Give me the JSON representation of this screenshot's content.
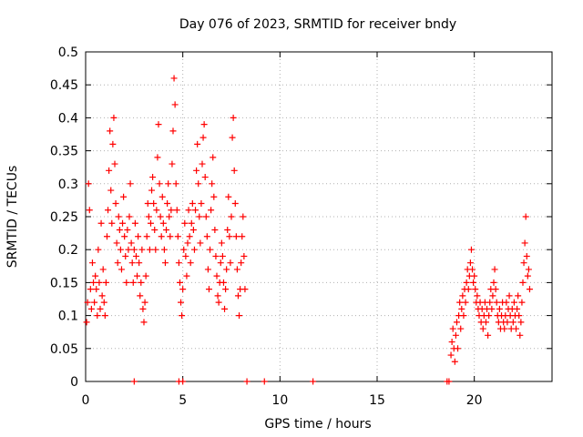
{
  "chart_data": {
    "type": "scatter",
    "title": "Day 076 of 2023, SRMTID for receiver bndy",
    "xlabel": "GPS time / hours",
    "ylabel": "SRMTID / TECUs",
    "xlim": [
      0,
      24
    ],
    "ylim": [
      0,
      0.5
    ],
    "x_ticks": [
      0,
      5,
      10,
      15,
      20
    ],
    "x_tick_labels": [
      "0",
      "5",
      "10",
      "15",
      "20"
    ],
    "y_ticks": [
      0,
      0.05,
      0.1,
      0.15,
      0.2,
      0.25,
      0.3,
      0.35,
      0.4,
      0.45,
      0.5
    ],
    "y_tick_labels": [
      "0",
      "0.05",
      "0.1",
      "0.15",
      "0.2",
      "0.25",
      "0.3",
      "0.35",
      "0.4",
      "0.45",
      "0.5"
    ],
    "grid": true,
    "marker": "+",
    "series": [
      {
        "name": "SRMTID",
        "color": "#ff0000",
        "points": [
          [
            0.05,
            0.09
          ],
          [
            0.1,
            0.12
          ],
          [
            0.15,
            0.3
          ],
          [
            0.2,
            0.26
          ],
          [
            0.25,
            0.14
          ],
          [
            0.3,
            0.11
          ],
          [
            0.35,
            0.18
          ],
          [
            0.4,
            0.15
          ],
          [
            0.45,
            0.12
          ],
          [
            0.5,
            0.16
          ],
          [
            0.55,
            0.14
          ],
          [
            0.6,
            0.1
          ],
          [
            0.65,
            0.2
          ],
          [
            0.7,
            0.15
          ],
          [
            0.75,
            0.11
          ],
          [
            0.8,
            0.24
          ],
          [
            0.85,
            0.13
          ],
          [
            0.9,
            0.17
          ],
          [
            0.95,
            0.12
          ],
          [
            1.0,
            0.1
          ],
          [
            1.05,
            0.15
          ],
          [
            1.1,
            0.22
          ],
          [
            1.15,
            0.26
          ],
          [
            1.2,
            0.32
          ],
          [
            1.25,
            0.38
          ],
          [
            1.3,
            0.29
          ],
          [
            1.35,
            0.24
          ],
          [
            1.4,
            0.36
          ],
          [
            1.45,
            0.4
          ],
          [
            1.5,
            0.33
          ],
          [
            1.55,
            0.27
          ],
          [
            1.6,
            0.21
          ],
          [
            1.65,
            0.18
          ],
          [
            1.7,
            0.25
          ],
          [
            1.75,
            0.23
          ],
          [
            1.8,
            0.2
          ],
          [
            1.85,
            0.17
          ],
          [
            1.9,
            0.24
          ],
          [
            1.95,
            0.28
          ],
          [
            2.0,
            0.22
          ],
          [
            2.05,
            0.19
          ],
          [
            2.1,
            0.15
          ],
          [
            2.15,
            0.23
          ],
          [
            2.2,
            0.2
          ],
          [
            2.25,
            0.25
          ],
          [
            2.3,
            0.3
          ],
          [
            2.35,
            0.21
          ],
          [
            2.4,
            0.18
          ],
          [
            2.45,
            0.15
          ],
          [
            2.5,
            0.2
          ],
          [
            2.55,
            0.24
          ],
          [
            2.6,
            0.19
          ],
          [
            2.65,
            0.16
          ],
          [
            2.7,
            0.22
          ],
          [
            2.75,
            0.18
          ],
          [
            2.8,
            0.13
          ],
          [
            2.85,
            0.15
          ],
          [
            2.9,
            0.2
          ],
          [
            2.95,
            0.11
          ],
          [
            3.0,
            0.09
          ],
          [
            3.05,
            0.12
          ],
          [
            3.1,
            0.16
          ],
          [
            3.15,
            0.22
          ],
          [
            3.2,
            0.27
          ],
          [
            3.25,
            0.25
          ],
          [
            3.3,
            0.2
          ],
          [
            3.35,
            0.24
          ],
          [
            3.4,
            0.29
          ],
          [
            3.45,
            0.31
          ],
          [
            3.5,
            0.27
          ],
          [
            3.55,
            0.23
          ],
          [
            3.6,
            0.2
          ],
          [
            3.65,
            0.26
          ],
          [
            3.7,
            0.34
          ],
          [
            3.75,
            0.39
          ],
          [
            3.8,
            0.3
          ],
          [
            3.85,
            0.25
          ],
          [
            3.9,
            0.22
          ],
          [
            3.95,
            0.28
          ],
          [
            4.0,
            0.24
          ],
          [
            4.05,
            0.2
          ],
          [
            4.1,
            0.18
          ],
          [
            4.15,
            0.23
          ],
          [
            4.2,
            0.27
          ],
          [
            4.25,
            0.3
          ],
          [
            4.3,
            0.25
          ],
          [
            4.35,
            0.22
          ],
          [
            4.4,
            0.26
          ],
          [
            4.45,
            0.33
          ],
          [
            4.5,
            0.38
          ],
          [
            4.55,
            0.46
          ],
          [
            4.6,
            0.42
          ],
          [
            4.65,
            0.3
          ],
          [
            4.7,
            0.26
          ],
          [
            4.75,
            0.22
          ],
          [
            4.8,
            0.18
          ],
          [
            4.85,
            0.15
          ],
          [
            4.9,
            0.12
          ],
          [
            4.95,
            0.1
          ],
          [
            5.0,
            0.14
          ],
          [
            5.05,
            0.2
          ],
          [
            5.1,
            0.24
          ],
          [
            5.15,
            0.19
          ],
          [
            5.2,
            0.16
          ],
          [
            5.25,
            0.21
          ],
          [
            5.3,
            0.26
          ],
          [
            5.35,
            0.22
          ],
          [
            5.4,
            0.18
          ],
          [
            5.45,
            0.24
          ],
          [
            5.5,
            0.27
          ],
          [
            5.55,
            0.23
          ],
          [
            5.6,
            0.2
          ],
          [
            5.65,
            0.26
          ],
          [
            5.7,
            0.32
          ],
          [
            5.75,
            0.36
          ],
          [
            5.8,
            0.3
          ],
          [
            5.85,
            0.25
          ],
          [
            5.9,
            0.21
          ],
          [
            5.95,
            0.27
          ],
          [
            6.0,
            0.33
          ],
          [
            6.05,
            0.37
          ],
          [
            6.1,
            0.39
          ],
          [
            6.15,
            0.31
          ],
          [
            6.2,
            0.25
          ],
          [
            6.25,
            0.22
          ],
          [
            6.3,
            0.17
          ],
          [
            6.35,
            0.14
          ],
          [
            6.4,
            0.2
          ],
          [
            6.45,
            0.26
          ],
          [
            6.5,
            0.3
          ],
          [
            6.55,
            0.34
          ],
          [
            6.6,
            0.28
          ],
          [
            6.65,
            0.23
          ],
          [
            6.7,
            0.19
          ],
          [
            6.75,
            0.16
          ],
          [
            6.8,
            0.13
          ],
          [
            6.85,
            0.12
          ],
          [
            6.9,
            0.15
          ],
          [
            6.95,
            0.18
          ],
          [
            7.0,
            0.21
          ],
          [
            7.05,
            0.19
          ],
          [
            7.1,
            0.15
          ],
          [
            7.15,
            0.11
          ],
          [
            7.2,
            0.14
          ],
          [
            7.25,
            0.17
          ],
          [
            7.3,
            0.23
          ],
          [
            7.35,
            0.28
          ],
          [
            7.4,
            0.22
          ],
          [
            7.45,
            0.18
          ],
          [
            7.5,
            0.25
          ],
          [
            7.55,
            0.37
          ],
          [
            7.6,
            0.4
          ],
          [
            7.65,
            0.32
          ],
          [
            7.7,
            0.27
          ],
          [
            7.75,
            0.22
          ],
          [
            7.8,
            0.17
          ],
          [
            7.85,
            0.13
          ],
          [
            7.9,
            0.1
          ],
          [
            7.95,
            0.14
          ],
          [
            8.0,
            0.18
          ],
          [
            8.05,
            0.22
          ],
          [
            8.1,
            0.25
          ],
          [
            8.15,
            0.19
          ],
          [
            8.2,
            0.14
          ],
          [
            2.5,
            0.0
          ],
          [
            4.8,
            0.0
          ],
          [
            5.0,
            0.0
          ],
          [
            8.3,
            0.0
          ],
          [
            9.2,
            0.0
          ],
          [
            11.7,
            0.0
          ],
          [
            18.6,
            0.0
          ],
          [
            18.7,
            0.0
          ],
          [
            18.8,
            0.04
          ],
          [
            18.85,
            0.06
          ],
          [
            18.9,
            0.08
          ],
          [
            18.95,
            0.05
          ],
          [
            19.0,
            0.03
          ],
          [
            19.05,
            0.07
          ],
          [
            19.1,
            0.09
          ],
          [
            19.15,
            0.05
          ],
          [
            19.2,
            0.1
          ],
          [
            19.25,
            0.12
          ],
          [
            19.3,
            0.08
          ],
          [
            19.35,
            0.11
          ],
          [
            19.4,
            0.13
          ],
          [
            19.45,
            0.1
          ],
          [
            19.5,
            0.14
          ],
          [
            19.55,
            0.12
          ],
          [
            19.6,
            0.15
          ],
          [
            19.65,
            0.17
          ],
          [
            19.7,
            0.14
          ],
          [
            19.75,
            0.16
          ],
          [
            19.8,
            0.18
          ],
          [
            19.85,
            0.2
          ],
          [
            19.9,
            0.17
          ],
          [
            19.95,
            0.15
          ],
          [
            20.0,
            0.16
          ],
          [
            20.05,
            0.14
          ],
          [
            20.1,
            0.12
          ],
          [
            20.15,
            0.13
          ],
          [
            20.2,
            0.11
          ],
          [
            20.25,
            0.1
          ],
          [
            20.3,
            0.12
          ],
          [
            20.35,
            0.09
          ],
          [
            20.4,
            0.11
          ],
          [
            20.45,
            0.08
          ],
          [
            20.5,
            0.1
          ],
          [
            20.55,
            0.12
          ],
          [
            20.6,
            0.09
          ],
          [
            20.65,
            0.11
          ],
          [
            20.7,
            0.07
          ],
          [
            20.75,
            0.1
          ],
          [
            20.8,
            0.12
          ],
          [
            20.85,
            0.14
          ],
          [
            20.9,
            0.11
          ],
          [
            20.95,
            0.13
          ],
          [
            21.0,
            0.15
          ],
          [
            21.05,
            0.17
          ],
          [
            21.1,
            0.14
          ],
          [
            21.15,
            0.12
          ],
          [
            21.2,
            0.1
          ],
          [
            21.25,
            0.09
          ],
          [
            21.3,
            0.11
          ],
          [
            21.35,
            0.08
          ],
          [
            21.4,
            0.1
          ],
          [
            21.45,
            0.12
          ],
          [
            21.5,
            0.09
          ],
          [
            21.55,
            0.08
          ],
          [
            21.6,
            0.1
          ],
          [
            21.65,
            0.12
          ],
          [
            21.7,
            0.09
          ],
          [
            21.75,
            0.11
          ],
          [
            21.8,
            0.13
          ],
          [
            21.85,
            0.1
          ],
          [
            21.9,
            0.08
          ],
          [
            21.95,
            0.11
          ],
          [
            22.0,
            0.09
          ],
          [
            22.05,
            0.12
          ],
          [
            22.1,
            0.1
          ],
          [
            22.15,
            0.08
          ],
          [
            22.2,
            0.11
          ],
          [
            22.25,
            0.13
          ],
          [
            22.3,
            0.1
          ],
          [
            22.35,
            0.07
          ],
          [
            22.4,
            0.09
          ],
          [
            22.45,
            0.12
          ],
          [
            22.5,
            0.15
          ],
          [
            22.55,
            0.18
          ],
          [
            22.6,
            0.21
          ],
          [
            22.65,
            0.25
          ],
          [
            22.7,
            0.19
          ],
          [
            22.75,
            0.16
          ],
          [
            22.8,
            0.17
          ],
          [
            22.85,
            0.14
          ]
        ]
      }
    ]
  }
}
